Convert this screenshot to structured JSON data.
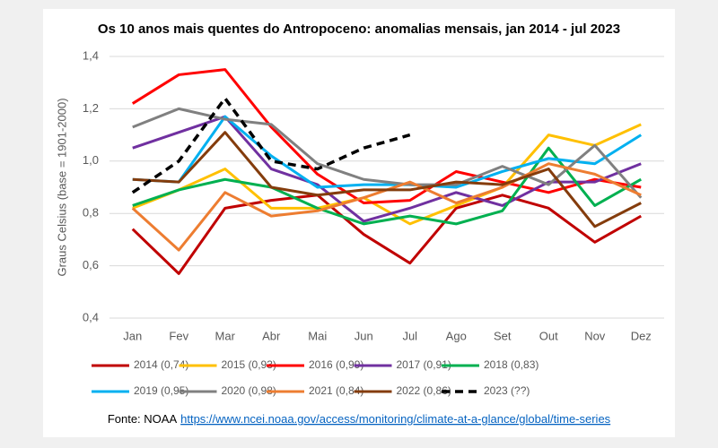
{
  "chart_data": {
    "type": "line",
    "title": "Os 10 anos mais quentes do Antropoceno: anomalias mensais, jan 2014 - jul 2023",
    "ylabel": "Graus Celsius (base = 1901-2000)",
    "source": "Fonte: NOAA",
    "source_url": "https://www.ncei.noaa.gov/access/monitoring/climate-at-a-glance/global/time-series",
    "categories": [
      "Jan",
      "Fev",
      "Mar",
      "Abr",
      "Mai",
      "Jun",
      "Jul",
      "Ago",
      "Set",
      "Out",
      "Nov",
      "Dez"
    ],
    "ylim": [
      0.4,
      1.4
    ],
    "yticks": [
      {
        "value": 0.4,
        "label": "0,4"
      },
      {
        "value": 0.6,
        "label": "0,6"
      },
      {
        "value": 0.8,
        "label": "0,8"
      },
      {
        "value": 1.0,
        "label": "1,0"
      },
      {
        "value": 1.2,
        "label": "1,2"
      },
      {
        "value": 1.4,
        "label": "1,4"
      }
    ],
    "grid": true,
    "legend": "bottom",
    "series": [
      {
        "name": "2014 (0,74)",
        "color": "#c00000",
        "values": [
          0.74,
          0.57,
          0.82,
          0.85,
          0.87,
          0.72,
          0.61,
          0.82,
          0.87,
          0.82,
          0.69,
          0.79
        ]
      },
      {
        "name": "2015 (0,93)",
        "color": "#ffc000",
        "values": [
          0.82,
          0.89,
          0.97,
          0.82,
          0.82,
          0.86,
          0.76,
          0.83,
          0.9,
          1.1,
          1.06,
          1.14
        ]
      },
      {
        "name": "2016 (0,99)",
        "color": "#ff0000",
        "values": [
          1.22,
          1.33,
          1.35,
          1.13,
          0.95,
          0.84,
          0.85,
          0.96,
          0.92,
          0.88,
          0.93,
          0.9
        ]
      },
      {
        "name": "2017 (0,91)",
        "color": "#7030a0",
        "values": [
          1.05,
          1.11,
          1.17,
          0.97,
          0.91,
          0.77,
          0.82,
          0.88,
          0.83,
          0.92,
          0.92,
          0.99
        ]
      },
      {
        "name": "2018 (0,83)",
        "color": "#00b050",
        "values": [
          0.83,
          0.89,
          0.93,
          0.9,
          0.82,
          0.76,
          0.79,
          0.76,
          0.81,
          1.05,
          0.83,
          0.93
        ]
      },
      {
        "name": "2019 (0,95)",
        "color": "#00b0f0",
        "values": [
          0.93,
          0.92,
          1.17,
          1.02,
          0.9,
          0.91,
          0.91,
          0.9,
          0.96,
          1.01,
          0.99,
          1.1
        ]
      },
      {
        "name": "2020 (0,98)",
        "color": "#808080",
        "values": [
          1.13,
          1.2,
          1.16,
          1.14,
          0.99,
          0.93,
          0.91,
          0.91,
          0.98,
          0.91,
          1.06,
          0.86
        ]
      },
      {
        "name": "2021 (0,84)",
        "color": "#ed7d31",
        "values": [
          0.82,
          0.66,
          0.88,
          0.79,
          0.81,
          0.86,
          0.92,
          0.84,
          0.9,
          0.99,
          0.95,
          0.87
        ]
      },
      {
        "name": "2022 (0,86)",
        "color": "#843c0c",
        "values": [
          0.93,
          0.92,
          1.11,
          0.9,
          0.87,
          0.89,
          0.89,
          0.92,
          0.91,
          0.97,
          0.75,
          0.84
        ]
      },
      {
        "name": "2023 (??)",
        "color": "#000000",
        "dash": true,
        "values": [
          0.88,
          1.0,
          1.24,
          1.0,
          0.97,
          1.05,
          1.1,
          null,
          null,
          null,
          null,
          null
        ]
      }
    ]
  }
}
